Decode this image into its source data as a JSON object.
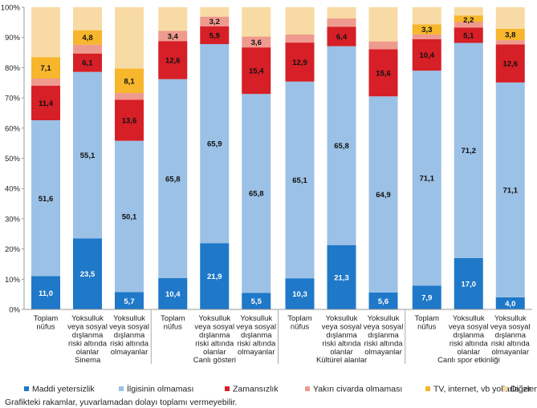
{
  "chart_data": {
    "type": "bar",
    "stacked": true,
    "yaxis": {
      "ylim": [
        0,
        100
      ],
      "ticks": [
        "0%",
        "10%",
        "20%",
        "30%",
        "40%",
        "50%",
        "60%",
        "70%",
        "80%",
        "90%",
        "100%"
      ]
    },
    "groups": [
      {
        "label": "Sinema",
        "bars": [
          {
            "label": [
              "Toplam",
              "nüfus"
            ],
            "values": [
              11.0,
              51.6,
              11.4,
              2.4,
              7.1,
              16.5
            ]
          },
          {
            "label": [
              "Yoksulluk",
              "veya sosyal",
              "dışlanma",
              "riski altında",
              "olanlar"
            ],
            "values": [
              23.5,
              55.1,
              6.1,
              2.9,
              4.8,
              7.6
            ]
          },
          {
            "label": [
              "Yoksulluk",
              "veya sosyal",
              "dışlanma",
              "riski altında",
              "olmayanlar"
            ],
            "values": [
              5.7,
              50.1,
              13.6,
              2.2,
              8.1,
              20.3
            ]
          }
        ]
      },
      {
        "label": "Canlı gösteri",
        "bars": [
          {
            "label": [
              "Toplam",
              "nüfus"
            ],
            "values": [
              10.4,
              65.8,
              12.6,
              3.4,
              0,
              7.8
            ]
          },
          {
            "label": [
              "Yoksulluk",
              "veya sosyal",
              "dışlanma",
              "riski altında",
              "olanlar"
            ],
            "values": [
              21.9,
              65.9,
              5.9,
              3.2,
              0,
              3.1
            ]
          },
          {
            "label": [
              "Yoksulluk",
              "veya sosyal",
              "dışlanma",
              "riski altında",
              "olmayanlar"
            ],
            "values": [
              5.5,
              65.8,
              15.4,
              3.6,
              0,
              9.7
            ]
          }
        ]
      },
      {
        "label": "Kültürel alanlar",
        "bars": [
          {
            "label": [
              "Toplam",
              "nüfus"
            ],
            "values": [
              10.3,
              65.1,
              12.9,
              2.7,
              0,
              9.0
            ]
          },
          {
            "label": [
              "Yoksulluk",
              "veya sosyal",
              "dışlanma",
              "riski altında",
              "olanlar"
            ],
            "values": [
              21.3,
              65.8,
              6.4,
              2.8,
              0,
              3.7
            ]
          },
          {
            "label": [
              "Yoksulluk",
              "veya sosyal",
              "dışlanma",
              "riski altında",
              "olmayanlar"
            ],
            "values": [
              5.6,
              64.9,
              15.6,
              2.6,
              0,
              11.3
            ]
          }
        ]
      },
      {
        "label": "Canlı spor etkinliği",
        "bars": [
          {
            "label": [
              "Toplam",
              "nüfus"
            ],
            "values": [
              7.9,
              71.1,
              10.4,
              1.6,
              3.3,
              5.7
            ]
          },
          {
            "label": [
              "Yoksulluk",
              "veya sosyal",
              "dışlanma",
              "riski altında",
              "olanlar"
            ],
            "values": [
              17.0,
              71.2,
              5.1,
              1.8,
              2.2,
              2.7
            ]
          },
          {
            "label": [
              "Yoksulluk",
              "veya sosyal",
              "dışlanma",
              "riski altında",
              "olmayanlar"
            ],
            "values": [
              4.0,
              71.1,
              12.6,
              1.4,
              3.8,
              7.1
            ]
          }
        ]
      }
    ],
    "series": [
      {
        "name": "Maddi yetersizlik",
        "color": "#1f78c8",
        "labeled": true
      },
      {
        "name": "İlgisinin olmaması",
        "color": "#9cc1e6",
        "labeled": true
      },
      {
        "name": "Zamansızlık",
        "color": "#d61f26",
        "labeled": true
      },
      {
        "name": "Yakın civarda olmaması",
        "color": "#ef9a8e",
        "labeled": true
      },
      {
        "name": "TV, internet, vb yollarla izlenmesi",
        "color": "#f7b62c",
        "labeled": true
      },
      {
        "name": "Diğer",
        "color": "#f8dba4",
        "labeled": false
      }
    ],
    "legend_position": "bottom",
    "grid": false
  },
  "footnote": "Grafikteki rakamlar, yuvarlamadan dolayı toplamı vermeyebilir."
}
